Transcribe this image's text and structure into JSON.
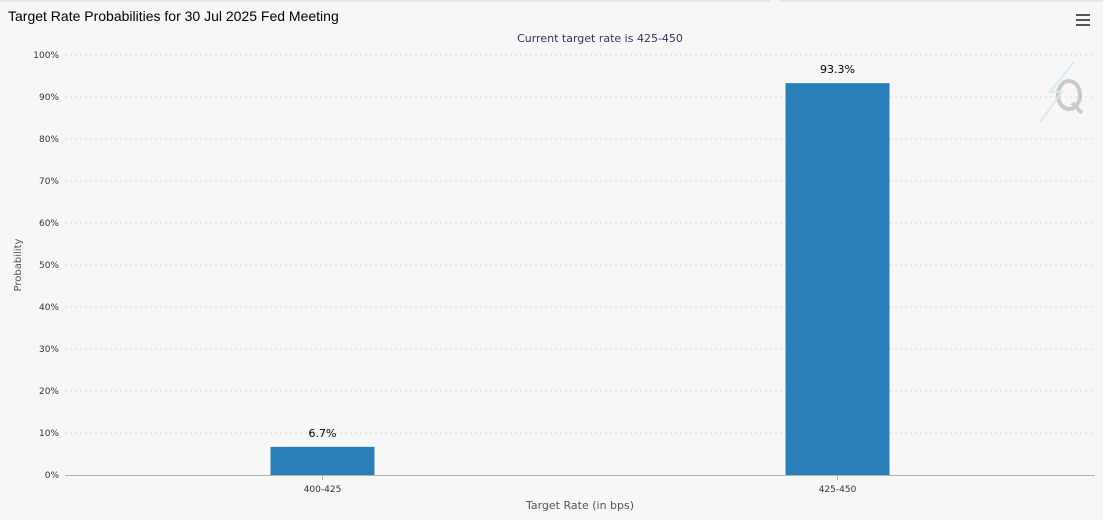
{
  "title": "Target Rate Probabilities for 30 Jul 2025 Fed Meeting",
  "menu_icon": "hamburger-menu-icon",
  "watermark_icon": "q-logo-watermark",
  "colors": {
    "bar": "#2a7fb8",
    "grid": "#d8d8d8",
    "subtitle": "#333366",
    "axis_text": "#333333"
  },
  "chart_data": {
    "type": "bar",
    "title": "Target Rate Probabilities for 30 Jul 2025 Fed Meeting",
    "subtitle": "Current target rate is 425-450",
    "xlabel": "Target Rate (in bps)",
    "ylabel": "Probability",
    "categories": [
      "400-425",
      "425-450"
    ],
    "values": [
      6.7,
      93.3
    ],
    "data_labels": [
      "6.7%",
      "93.3%"
    ],
    "ylim": [
      0,
      100
    ],
    "yticks": [
      0,
      10,
      20,
      30,
      40,
      50,
      60,
      70,
      80,
      90,
      100
    ],
    "ytick_labels": [
      "0%",
      "10%",
      "20%",
      "30%",
      "40%",
      "50%",
      "60%",
      "70%",
      "80%",
      "90%",
      "100%"
    ],
    "grid": true,
    "legend": "none"
  }
}
